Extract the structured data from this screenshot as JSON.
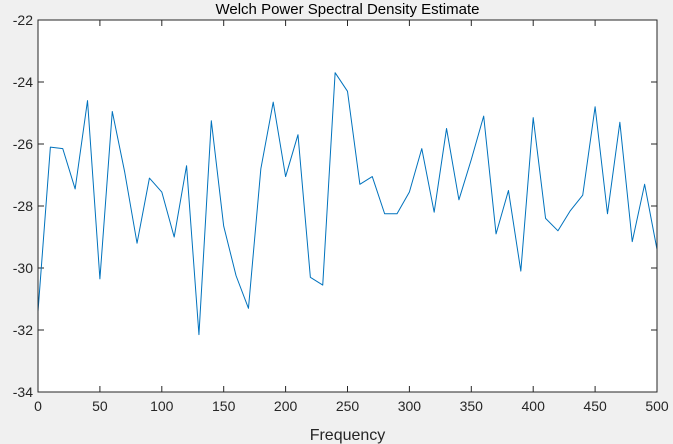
{
  "colors": {
    "figure_background": "#f0f0f0",
    "axes_background": "#ffffff",
    "axes_line": "#262626",
    "series_line": "#0072bd"
  },
  "chart_data": {
    "type": "line",
    "title": "Welch Power Spectral Density Estimate",
    "xlabel": "Frequency",
    "ylabel": "",
    "xlim": [
      0,
      500
    ],
    "ylim": [
      -34,
      -22
    ],
    "grid": false,
    "box": true,
    "x_ticks": [
      0,
      50,
      100,
      150,
      200,
      250,
      300,
      350,
      400,
      450,
      500
    ],
    "y_ticks": [
      -22,
      -24,
      -26,
      -28,
      -30,
      -32,
      -34
    ],
    "x_tick_labels": [
      "0",
      "50",
      "100",
      "150",
      "200",
      "250",
      "300",
      "350",
      "400",
      "450",
      "500"
    ],
    "y_tick_labels": [
      "-22",
      "-24",
      "-26",
      "-28",
      "-30",
      "-32",
      "-34"
    ],
    "series": [
      {
        "x": [
          0,
          10,
          20,
          30,
          40,
          50,
          60,
          70,
          80,
          90,
          100,
          110,
          120,
          130,
          140,
          150,
          160,
          170,
          180,
          190,
          200,
          210,
          220,
          230,
          240,
          250,
          260,
          270,
          280,
          290,
          300,
          310,
          320,
          330,
          340,
          350,
          360,
          370,
          380,
          390,
          400,
          410,
          420,
          430,
          440,
          450,
          460,
          470,
          480,
          490,
          500
        ],
        "values": [
          -31.4,
          -26.1,
          -26.15,
          -27.45,
          -24.6,
          -30.35,
          -24.95,
          -26.9,
          -29.2,
          -27.1,
          -27.55,
          -29.0,
          -26.7,
          -32.15,
          -25.25,
          -28.65,
          -30.25,
          -31.3,
          -26.8,
          -24.65,
          -27.05,
          -25.7,
          -30.3,
          -30.55,
          -23.7,
          -24.3,
          -27.3,
          -27.05,
          -28.25,
          -28.25,
          -27.55,
          -26.15,
          -28.2,
          -25.5,
          -27.8,
          -26.5,
          -25.1,
          -28.9,
          -27.5,
          -30.1,
          -25.15,
          -28.4,
          -28.8,
          -28.15,
          -27.65,
          -24.8,
          -28.25,
          -25.3,
          -29.15,
          -27.3,
          -29.4
        ]
      }
    ]
  }
}
